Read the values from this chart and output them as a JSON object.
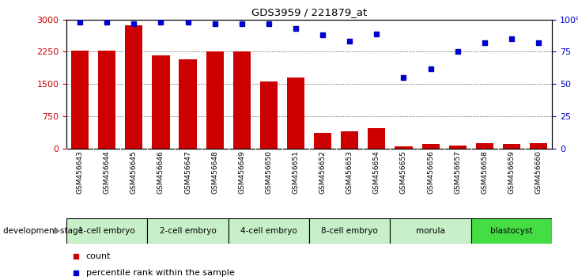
{
  "title": "GDS3959 / 221879_at",
  "samples": [
    "GSM456643",
    "GSM456644",
    "GSM456645",
    "GSM456646",
    "GSM456647",
    "GSM456648",
    "GSM456649",
    "GSM456650",
    "GSM456651",
    "GSM456652",
    "GSM456653",
    "GSM456654",
    "GSM456655",
    "GSM456656",
    "GSM456657",
    "GSM456658",
    "GSM456659",
    "GSM456660"
  ],
  "counts": [
    2270,
    2280,
    2870,
    2170,
    2070,
    2250,
    2250,
    1560,
    1660,
    360,
    390,
    470,
    50,
    100,
    60,
    130,
    110,
    130
  ],
  "percentile_ranks": [
    98,
    98,
    97,
    98,
    98,
    97,
    97,
    97,
    93,
    88,
    83,
    89,
    55,
    62,
    75,
    82,
    85,
    82
  ],
  "stages": [
    {
      "label": "1-cell embryo",
      "start": 0,
      "end": 3,
      "color": "#c8f0c8"
    },
    {
      "label": "2-cell embryo",
      "start": 3,
      "end": 6,
      "color": "#c8f0c8"
    },
    {
      "label": "4-cell embryo",
      "start": 6,
      "end": 9,
      "color": "#c8f0c8"
    },
    {
      "label": "8-cell embryo",
      "start": 9,
      "end": 12,
      "color": "#c8f0c8"
    },
    {
      "label": "morula",
      "start": 12,
      "end": 15,
      "color": "#c8f0c8"
    },
    {
      "label": "blastocyst",
      "start": 15,
      "end": 18,
      "color": "#44dd44"
    }
  ],
  "bar_color": "#cc0000",
  "dot_color": "#0000cc",
  "sample_bg": "#c8c8c8",
  "left_yticks": [
    0,
    750,
    1500,
    2250,
    3000
  ],
  "right_yticks": [
    0,
    25,
    50,
    75,
    100
  ],
  "ylim_left": [
    0,
    3000
  ],
  "ylim_right": [
    0,
    100
  ],
  "ylabel_left_color": "#cc0000",
  "ylabel_right_color": "#0000cc",
  "legend_count_label": "count",
  "legend_pct_label": "percentile rank within the sample",
  "development_stage_label": "development stage"
}
